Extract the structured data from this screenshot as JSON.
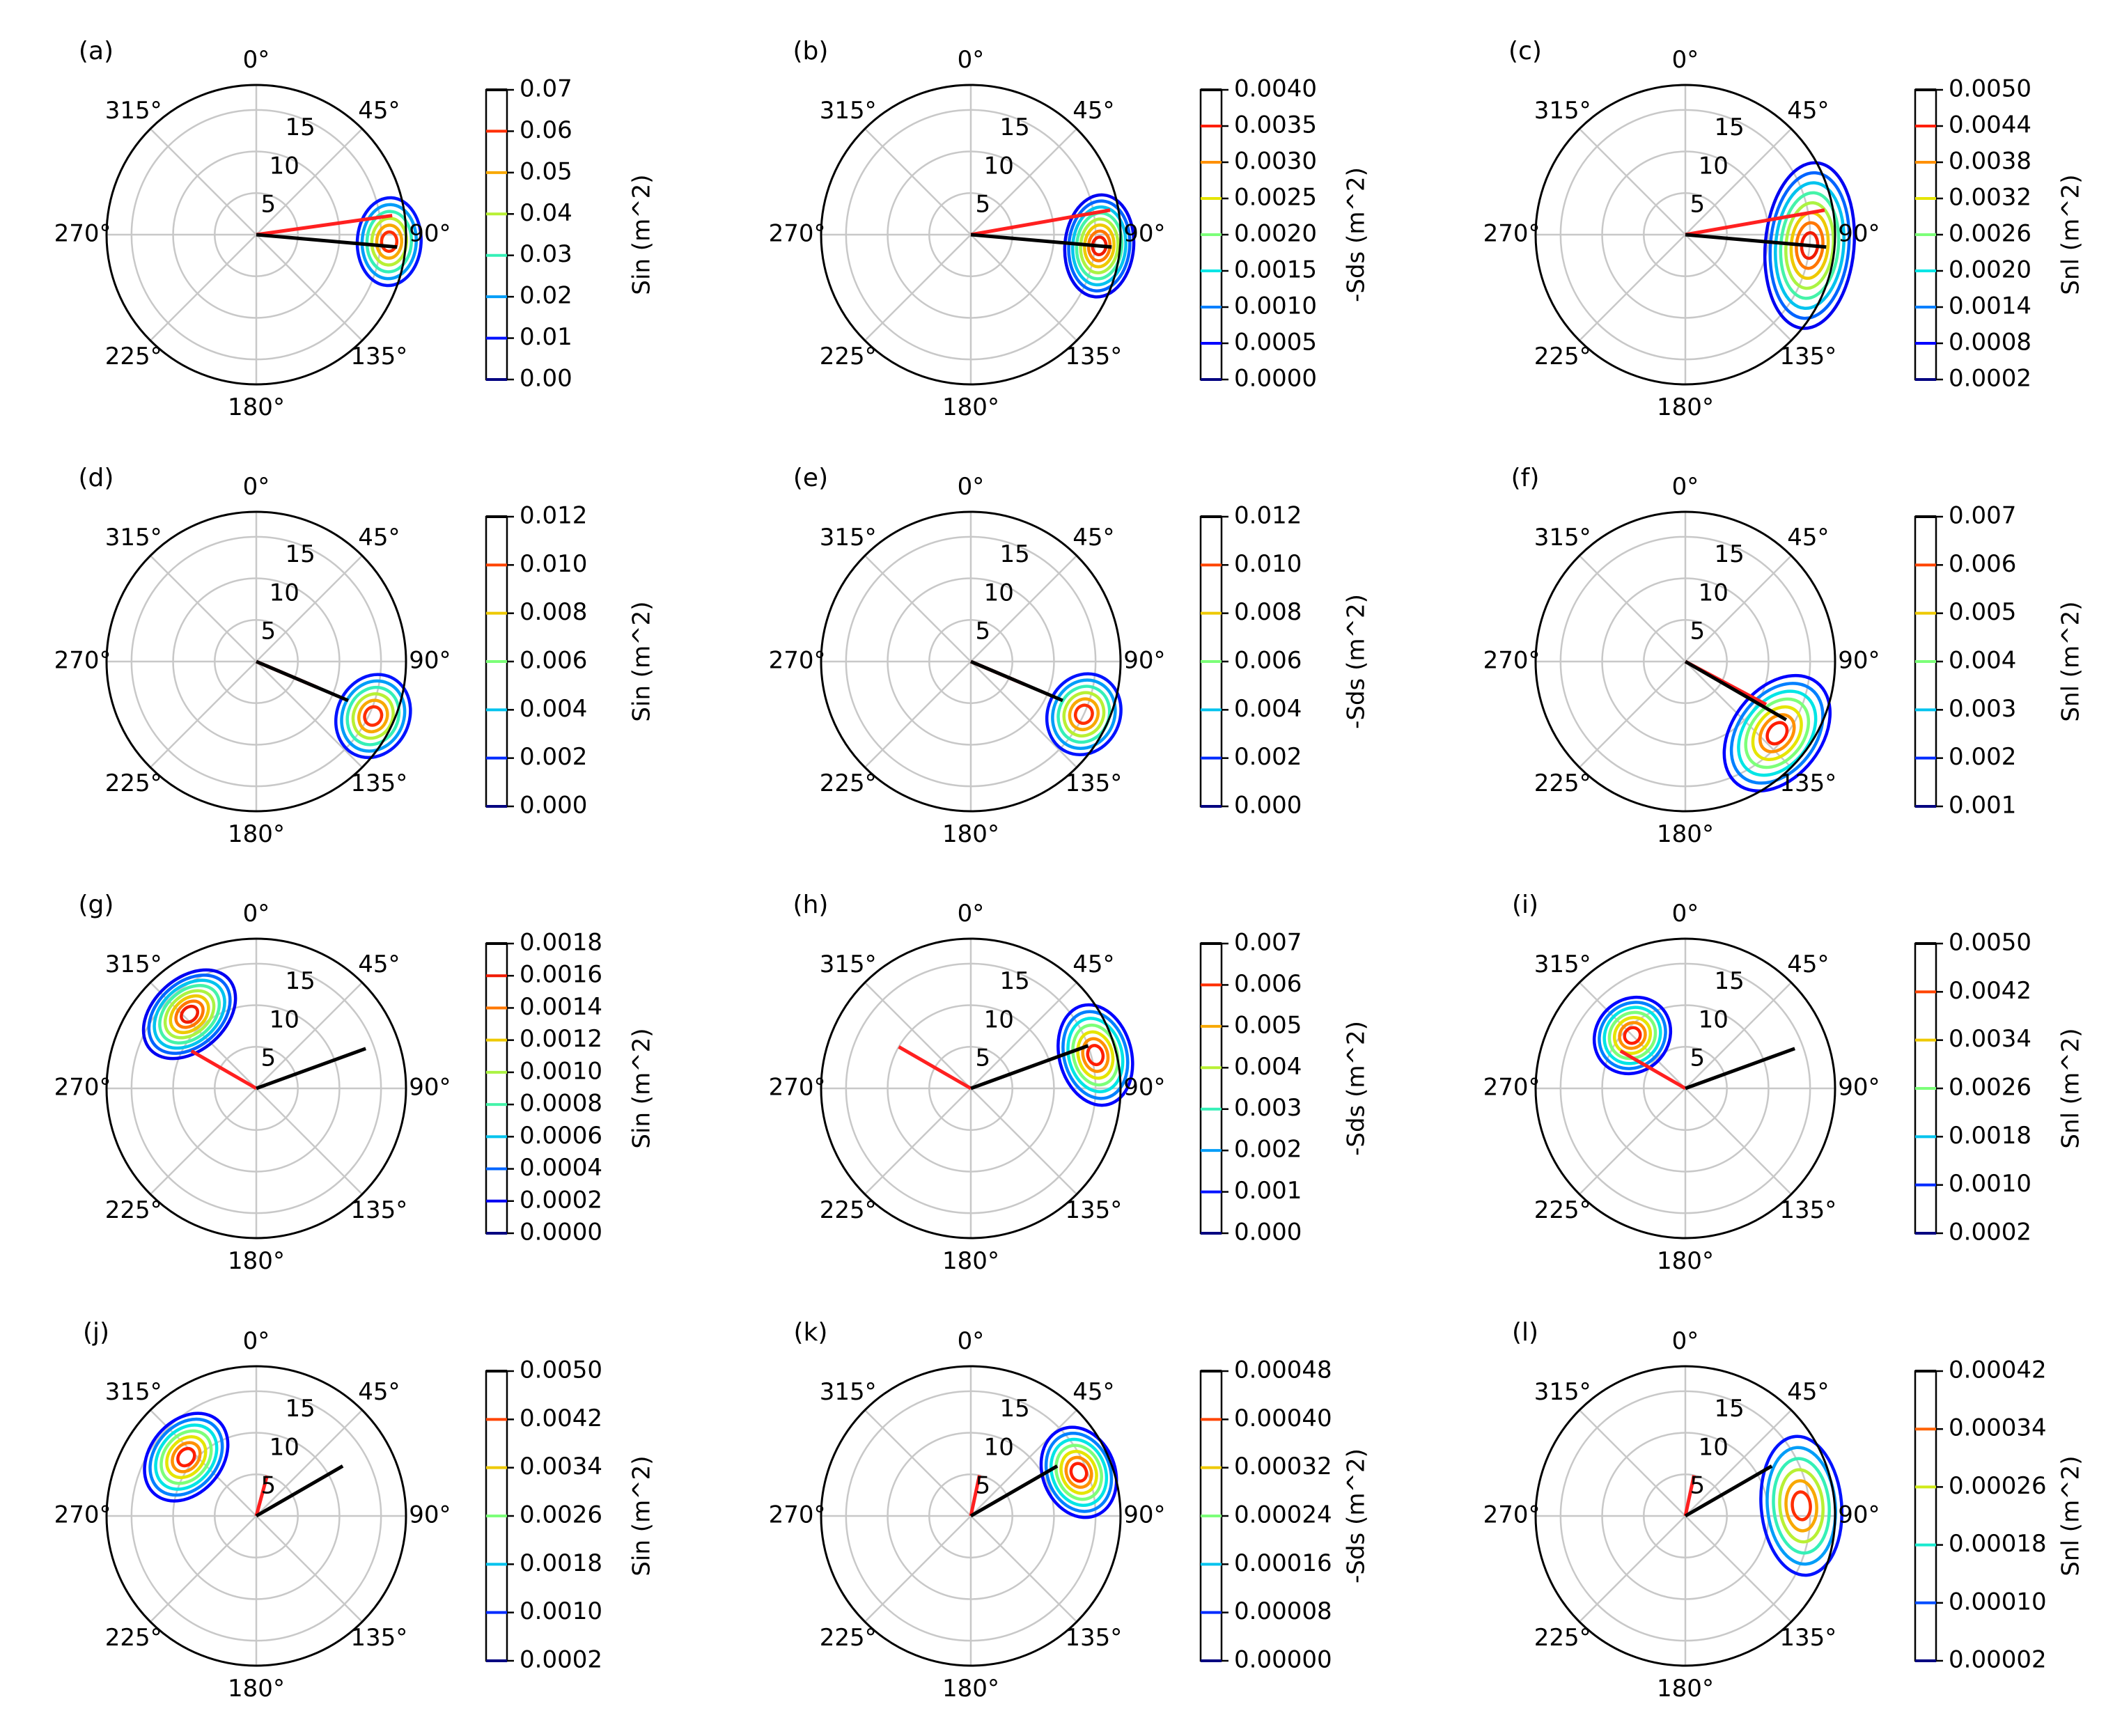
{
  "figure": {
    "colors": {
      "level_palette": [
        "#000080",
        "#0000ff",
        "#0080ff",
        "#00e5e5",
        "#7cff79",
        "#e5e500",
        "#ff9000",
        "#ff1e00",
        "#800000"
      ],
      "wind_direction_line": "#ff2020",
      "peak_direction_line": "#000000",
      "grid": "#c8c8c8"
    }
  },
  "chart_data": [
    {
      "id": "a",
      "type": "contour",
      "panel_label": "(a)",
      "angle_labels": [
        "0°",
        "45°",
        "90°",
        "135°",
        "180°",
        "225°",
        "270°",
        "315°"
      ],
      "radial_ticks": [
        "5",
        "10",
        "15"
      ],
      "radial_ticks_values": [
        5,
        10,
        15
      ],
      "rmax": 18,
      "cbar_label": "Sin (m^2)",
      "cbar_ticks": [
        "0.07",
        "0.06",
        "0.05",
        "0.04",
        "0.03",
        "0.02",
        "0.01",
        "0.00"
      ],
      "cbar_min": 0,
      "cbar_max": 0.07,
      "red_dir": 82,
      "red_r": 16.5,
      "black_dir": 95,
      "black_r": 17,
      "blob_centers": [
        {
          "dir": 93,
          "r": 16,
          "rs": 3.5,
          "ts": 18,
          "nl": 6
        }
      ]
    },
    {
      "id": "b",
      "type": "contour",
      "panel_label": "(b)",
      "angle_labels": [
        "0°",
        "45°",
        "90°",
        "135°",
        "180°",
        "225°",
        "270°",
        "315°"
      ],
      "radial_ticks": [
        "5",
        "10",
        "15"
      ],
      "radial_ticks_values": [
        5,
        10,
        15
      ],
      "rmax": 18,
      "cbar_label": "-Sds (m^2)",
      "cbar_ticks": [
        "0.0040",
        "0.0035",
        "0.0030",
        "0.0025",
        "0.0020",
        "0.0015",
        "0.0010",
        "0.0005",
        "0.0000"
      ],
      "cbar_min": 0,
      "cbar_max": 0.004,
      "red_dir": 80,
      "red_r": 17,
      "black_dir": 95,
      "black_r": 17,
      "blob_centers": [
        {
          "dir": 95,
          "r": 15.5,
          "rs": 3.8,
          "ts": 22,
          "nl": 8
        }
      ]
    },
    {
      "id": "c",
      "type": "contour",
      "panel_label": "(c)",
      "angle_labels": [
        "0°",
        "45°",
        "90°",
        "135°",
        "180°",
        "225°",
        "270°",
        "315°"
      ],
      "radial_ticks": [
        "5",
        "10",
        "15"
      ],
      "radial_ticks_values": [
        5,
        10,
        15
      ],
      "rmax": 18,
      "cbar_label": "Snl (m^2)",
      "cbar_ticks": [
        "0.0050",
        "0.0044",
        "0.0038",
        "0.0032",
        "0.0026",
        "0.0020",
        "0.0014",
        "0.0008",
        "0.0002"
      ],
      "cbar_min": 0.0002,
      "cbar_max": 0.005,
      "red_dir": 80,
      "red_r": 17,
      "black_dir": 95,
      "black_r": 17,
      "blob_centers": [
        {
          "dir": 95,
          "r": 15,
          "rs": 5,
          "ts": 40,
          "nl": 8
        }
      ]
    },
    {
      "id": "d",
      "type": "contour",
      "panel_label": "(d)",
      "angle_labels": [
        "0°",
        "45°",
        "90°",
        "135°",
        "180°",
        "225°",
        "270°",
        "315°"
      ],
      "radial_ticks": [
        "5",
        "10",
        "15"
      ],
      "radial_ticks_values": [
        5,
        10,
        15
      ],
      "rmax": 18,
      "cbar_label": "Sin (m^2)",
      "cbar_ticks": [
        "0.012",
        "0.010",
        "0.008",
        "0.006",
        "0.004",
        "0.002",
        "0.000"
      ],
      "cbar_min": 0,
      "cbar_max": 0.012,
      "red_dir": 113,
      "red_r": 8,
      "black_dir": 113,
      "black_r": 12,
      "blob_centers": [
        {
          "dir": 115,
          "r": 15.5,
          "rs": 4,
          "ts": 18,
          "nl": 6
        }
      ]
    },
    {
      "id": "e",
      "type": "contour",
      "panel_label": "(e)",
      "angle_labels": [
        "0°",
        "45°",
        "90°",
        "135°",
        "180°",
        "225°",
        "270°",
        "315°"
      ],
      "radial_ticks": [
        "5",
        "10",
        "15"
      ],
      "radial_ticks_values": [
        5,
        10,
        15
      ],
      "rmax": 18,
      "cbar_label": "-Sds (m^2)",
      "cbar_ticks": [
        "0.012",
        "0.010",
        "0.008",
        "0.006",
        "0.004",
        "0.002",
        "0.000"
      ],
      "cbar_min": 0,
      "cbar_max": 0.012,
      "red_dir": 113,
      "red_r": 7,
      "black_dir": 113,
      "black_r": 12,
      "blob_centers": [
        {
          "dir": 115,
          "r": 15,
          "rs": 4,
          "ts": 18,
          "nl": 6
        }
      ]
    },
    {
      "id": "f",
      "type": "contour",
      "panel_label": "(f)",
      "angle_labels": [
        "0°",
        "45°",
        "90°",
        "135°",
        "180°",
        "225°",
        "270°",
        "315°"
      ],
      "radial_ticks": [
        "5",
        "10",
        "15"
      ],
      "radial_ticks_values": [
        5,
        10,
        15
      ],
      "rmax": 18,
      "cbar_label": "Snl (m^2)",
      "cbar_ticks": [
        "0.007",
        "0.006",
        "0.005",
        "0.004",
        "0.003",
        "0.002",
        "0.001"
      ],
      "cbar_min": 0.001,
      "cbar_max": 0.007,
      "red_dir": 118,
      "red_r": 11,
      "black_dir": 120,
      "black_r": 14,
      "blob_centers": [
        {
          "dir": 128,
          "r": 14,
          "rs": 5,
          "ts": 32,
          "nl": 7
        }
      ]
    },
    {
      "id": "g",
      "type": "contour",
      "panel_label": "(g)",
      "angle_labels": [
        "0°",
        "45°",
        "90°",
        "135°",
        "180°",
        "225°",
        "270°",
        "315°"
      ],
      "radial_ticks": [
        "5",
        "10",
        "15"
      ],
      "radial_ticks_values": [
        5,
        10,
        15
      ],
      "rmax": 18,
      "cbar_label": "Sin (m^2)",
      "cbar_ticks": [
        "0.0018",
        "0.0016",
        "0.0014",
        "0.0012",
        "0.0010",
        "0.0008",
        "0.0006",
        "0.0004",
        "0.0002",
        "0.0000"
      ],
      "cbar_min": 0,
      "cbar_max": 0.0018,
      "red_dir": 300,
      "red_r": 9,
      "black_dir": 70,
      "black_r": 14,
      "blob_centers": [
        {
          "dir": 318,
          "r": 12,
          "rs": 4,
          "ts": 30,
          "nl": 8
        }
      ]
    },
    {
      "id": "h",
      "type": "contour",
      "panel_label": "(h)",
      "angle_labels": [
        "0°",
        "45°",
        "90°",
        "135°",
        "180°",
        "225°",
        "270°",
        "315°"
      ],
      "radial_ticks": [
        "5",
        "10",
        "15"
      ],
      "radial_ticks_values": [
        5,
        10,
        15
      ],
      "rmax": 18,
      "cbar_label": "-Sds (m^2)",
      "cbar_ticks": [
        "0.007",
        "0.006",
        "0.005",
        "0.004",
        "0.003",
        "0.002",
        "0.001",
        "0.000"
      ],
      "cbar_min": 0,
      "cbar_max": 0.007,
      "red_dir": 300,
      "red_r": 10,
      "black_dir": 70,
      "black_r": 15,
      "blob_centers": [
        {
          "dir": 75,
          "r": 15.5,
          "rs": 4,
          "ts": 22,
          "nl": 7
        }
      ]
    },
    {
      "id": "i",
      "type": "contour",
      "panel_label": "(i)",
      "angle_labels": [
        "0°",
        "45°",
        "90°",
        "135°",
        "180°",
        "225°",
        "270°",
        "315°"
      ],
      "radial_ticks": [
        "5",
        "10",
        "15"
      ],
      "radial_ticks_values": [
        5,
        10,
        15
      ],
      "rmax": 18,
      "cbar_label": "Snl (m^2)",
      "cbar_ticks": [
        "0.0050",
        "0.0042",
        "0.0034",
        "0.0026",
        "0.0018",
        "0.0010",
        "0.0002"
      ],
      "cbar_min": 0.0002,
      "cbar_max": 0.005,
      "red_dir": 300,
      "red_r": 9,
      "black_dir": 70,
      "black_r": 14,
      "blob_centers": [
        {
          "dir": 315,
          "r": 9,
          "rs": 4,
          "ts": 30,
          "nl": 7
        }
      ]
    },
    {
      "id": "j",
      "type": "contour",
      "panel_label": "(j)",
      "angle_labels": [
        "0°",
        "45°",
        "90°",
        "135°",
        "180°",
        "225°",
        "270°",
        "315°"
      ],
      "radial_ticks": [
        "5",
        "10",
        "15"
      ],
      "radial_ticks_values": [
        5,
        10,
        15
      ],
      "rmax": 18,
      "cbar_label": "Sin (m^2)",
      "cbar_ticks": [
        "0.0050",
        "0.0042",
        "0.0034",
        "0.0026",
        "0.0018",
        "0.0010",
        "0.0002"
      ],
      "cbar_min": 0.0002,
      "cbar_max": 0.005,
      "red_dir": 15,
      "red_r": 5,
      "black_dir": 60,
      "black_r": 12,
      "blob_centers": [
        {
          "dir": 310,
          "r": 11,
          "rs": 4,
          "ts": 30,
          "nl": 7
        }
      ]
    },
    {
      "id": "k",
      "type": "contour",
      "panel_label": "(k)",
      "angle_labels": [
        "0°",
        "45°",
        "90°",
        "135°",
        "180°",
        "225°",
        "270°",
        "315°"
      ],
      "radial_ticks": [
        "5",
        "10",
        "15"
      ],
      "radial_ticks_values": [
        5,
        10,
        15
      ],
      "rmax": 18,
      "cbar_label": "-Sds (m^2)",
      "cbar_ticks": [
        "0.00048",
        "0.00040",
        "0.00032",
        "0.00024",
        "0.00016",
        "0.00008",
        "0.00000"
      ],
      "cbar_min": 0,
      "cbar_max": 0.00048,
      "red_dir": 12,
      "red_r": 5,
      "black_dir": 60,
      "black_r": 12,
      "blob_centers": [
        {
          "dir": 68,
          "r": 14,
          "rs": 4,
          "ts": 22,
          "nl": 7
        }
      ]
    },
    {
      "id": "l",
      "type": "contour",
      "panel_label": "(l)",
      "angle_labels": [
        "0°",
        "45°",
        "90°",
        "135°",
        "180°",
        "225°",
        "270°",
        "315°"
      ],
      "radial_ticks": [
        "5",
        "10",
        "15"
      ],
      "radial_ticks_values": [
        5,
        10,
        15
      ],
      "rmax": 18,
      "cbar_label": "Snl (m^2)",
      "cbar_ticks": [
        "0.00042",
        "0.00034",
        "0.00026",
        "0.00018",
        "0.00010",
        "0.00002"
      ],
      "cbar_min": 2e-05,
      "cbar_max": 0.00042,
      "red_dir": 12,
      "red_r": 5,
      "black_dir": 60,
      "black_r": 12,
      "blob_centers": [
        {
          "dir": 85,
          "r": 14,
          "rs": 4.5,
          "ts": 35,
          "nl": 6
        }
      ]
    }
  ]
}
